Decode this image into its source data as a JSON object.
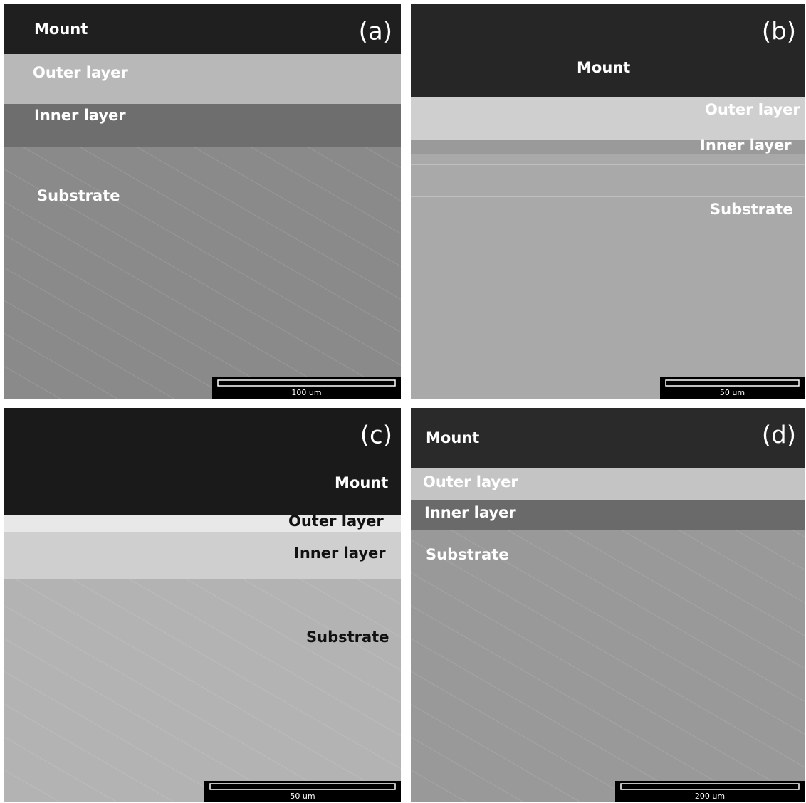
{
  "panels": [
    {
      "letter": "(a)",
      "labels": [
        "Mount",
        "Outer layer",
        "Inner layer",
        "Substrate"
      ],
      "scale_bar": "100 um"
    },
    {
      "letter": "(b)",
      "labels": [
        "Mount",
        "Outer layer",
        "Inner layer",
        "Substrate"
      ],
      "scale_bar": "50 um"
    },
    {
      "letter": "(c)",
      "labels": [
        "Mount",
        "Outer layer",
        "Inner layer",
        "Substrate"
      ],
      "scale_bar": "50 um"
    },
    {
      "letter": "(d)",
      "labels": [
        "Mount",
        "Outer layer",
        "Inner layer",
        "Substrate"
      ],
      "scale_bar": "200 um"
    }
  ]
}
